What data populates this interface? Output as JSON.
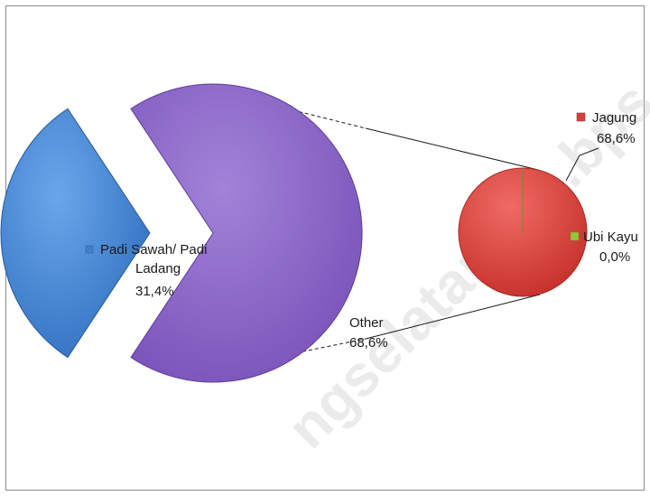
{
  "chart_data": {
    "type": "pie",
    "subtype": "pie-of-pie",
    "main_pie": [
      {
        "name": "Padi Sawah/ Padi Ladang",
        "value": 31.4,
        "label": "31,4%",
        "color": "#3f7fcf"
      },
      {
        "name": "Other",
        "value": 68.6,
        "label": "68,6%",
        "color": "#8a63c2"
      }
    ],
    "secondary_pie": [
      {
        "name": "Jagung",
        "value": 68.6,
        "label": "68,6%",
        "color": "#d6403a"
      },
      {
        "name": "Ubi Kayu",
        "value": 0.0,
        "label": "0,0%",
        "color": "#9cc33a"
      }
    ],
    "title": "",
    "legend": "none"
  },
  "watermark": "ngselatankab.bps.g"
}
